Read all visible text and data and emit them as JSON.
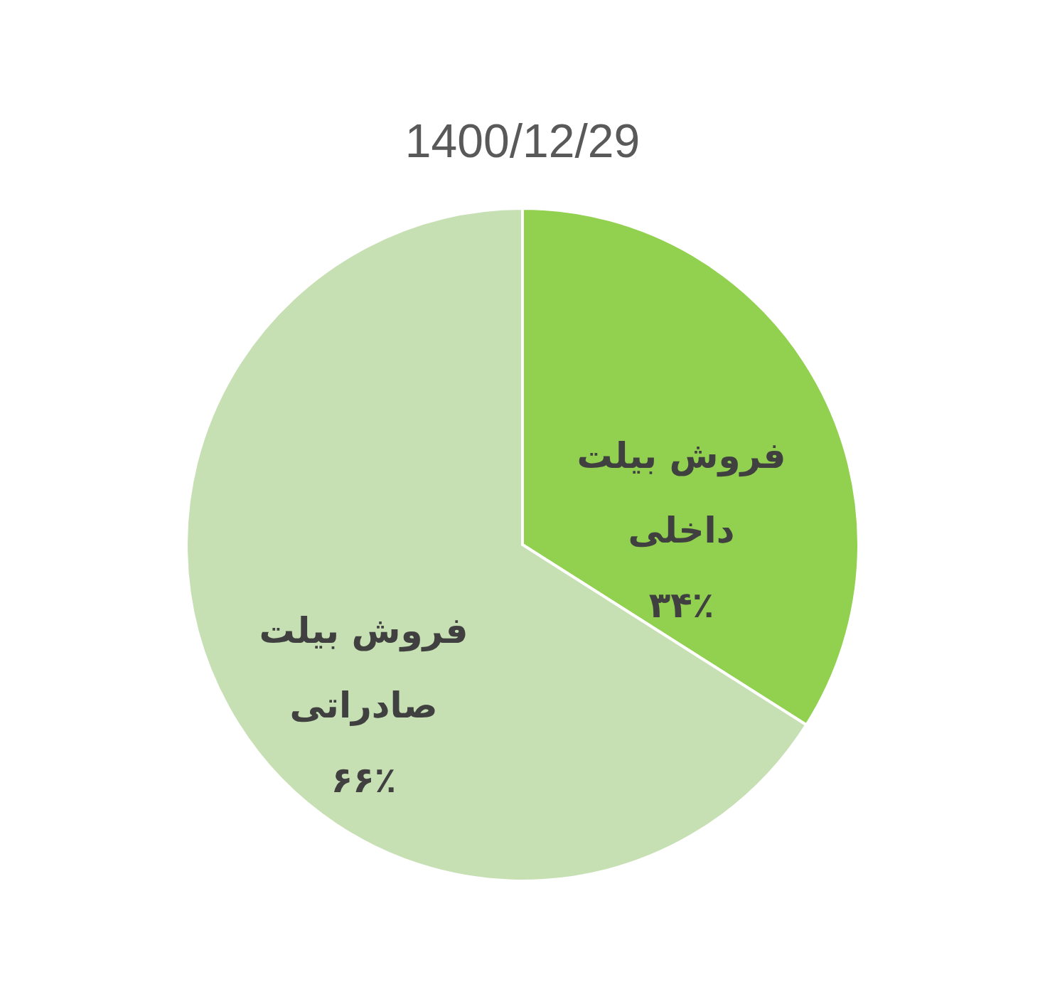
{
  "chart_data": {
    "type": "pie",
    "title": "1400/12/29",
    "categories": [
      "فروش بیلت داخلی",
      "فروش بیلت صادراتی"
    ],
    "values": [
      34,
      66
    ],
    "colors": [
      "#92d050",
      "#c6e0b4"
    ],
    "value_labels": [
      "۳۴٪",
      "۶۶٪"
    ]
  }
}
